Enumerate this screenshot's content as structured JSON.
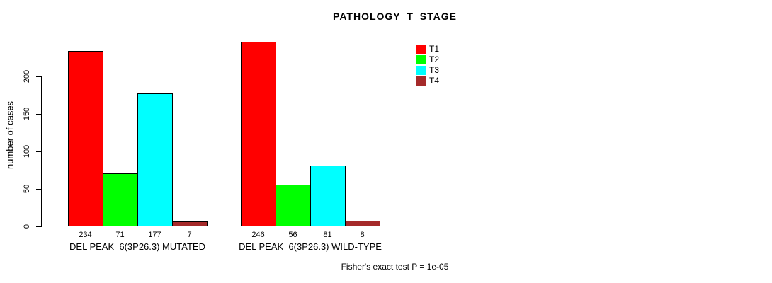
{
  "figure": {
    "title": "PATHOLOGY_T_STAGE",
    "y_axis_title": "number of cases",
    "footer": "Fisher's exact test P = 1e-05"
  },
  "chart_data": {
    "type": "bar",
    "title": "PATHOLOGY_T_STAGE",
    "xlabel": "",
    "ylabel": "number of cases",
    "ylim": [
      0,
      250
    ],
    "yticks": [
      0,
      50,
      100,
      150,
      200
    ],
    "grid": false,
    "legend_position": "top-right",
    "categories": [
      "DEL PEAK  6(3P26.3) MUTATED",
      "DEL PEAK  6(3P26.3) WILD-TYPE"
    ],
    "series": [
      {
        "name": "T1",
        "color": "#FF0000",
        "values": [
          234,
          246
        ]
      },
      {
        "name": "T2",
        "color": "#00FF00",
        "values": [
          71,
          56
        ]
      },
      {
        "name": "T3",
        "color": "#00FFFF",
        "values": [
          177,
          81
        ]
      },
      {
        "name": "T4",
        "color": "#A52A2A",
        "values": [
          7,
          8
        ]
      }
    ],
    "bar_value_labels": [
      [
        234,
        71,
        177,
        7
      ],
      [
        246,
        56,
        81,
        8
      ]
    ],
    "annotation": "Fisher's exact test P = 1e-05"
  }
}
